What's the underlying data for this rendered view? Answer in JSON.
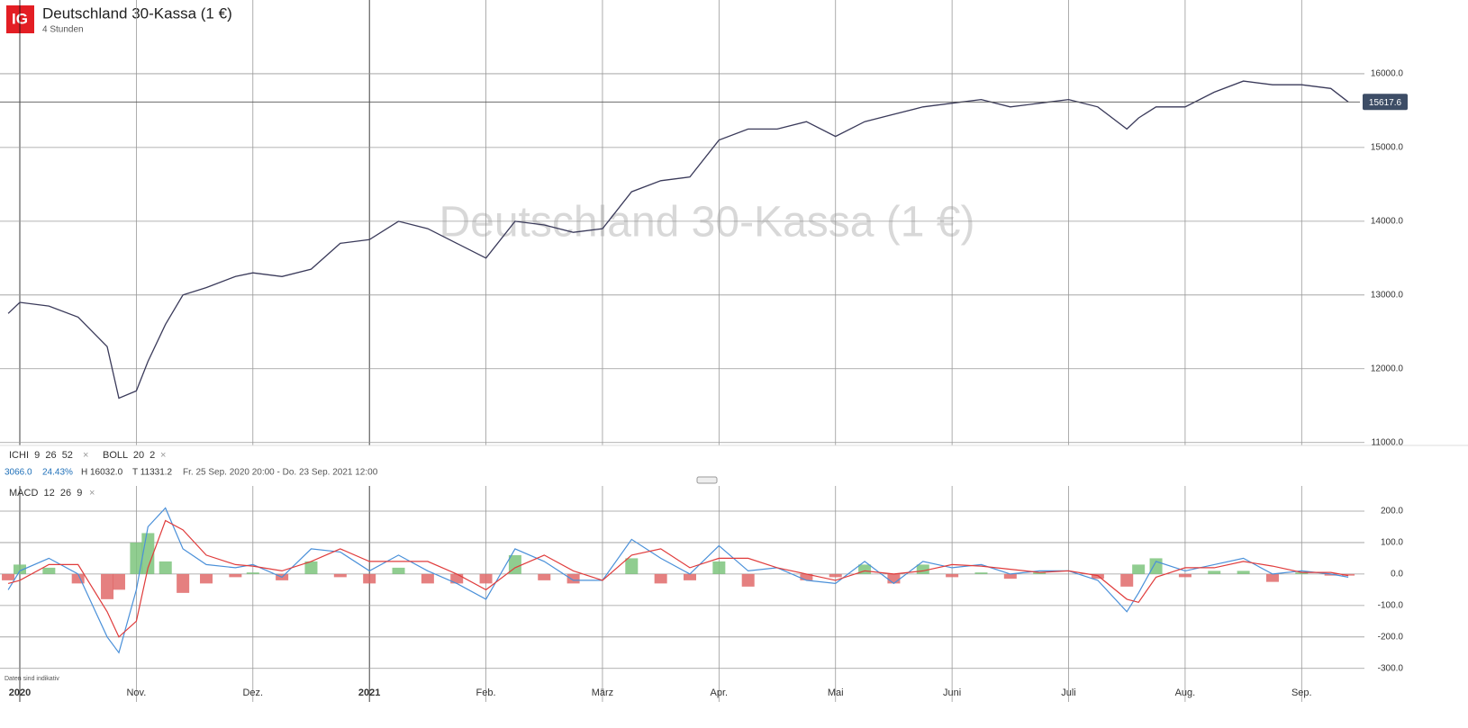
{
  "header": {
    "logo": "IG",
    "title": "Deutschland 30-Kassa (1 €)",
    "subtitle": "4 Stunden"
  },
  "indicators": {
    "ichi": "ICHI  9  26  52",
    "boll": "BOLL  20  2",
    "macd": "MACD  12  26  9"
  },
  "stats": {
    "change": "3066.0",
    "change_pct": "24.43%",
    "high": "H 16032.0",
    "low": "T 11331.2",
    "range": "Fr. 25 Sep. 2020 20:00 - Do. 23 Sep. 2021 12:00"
  },
  "footer": "Daten sind indikativ",
  "chart_data": [
    {
      "type": "line",
      "color": "#3a3a5a",
      "grid": true,
      "x": [
        -0.1,
        0,
        0.25,
        0.5,
        0.75,
        0.85,
        1,
        1.1,
        1.25,
        1.4,
        1.6,
        1.85,
        2,
        2.25,
        2.5,
        2.75,
        3,
        3.25,
        3.5,
        3.75,
        4,
        4.25,
        4.5,
        4.75,
        5,
        5.25,
        5.5,
        5.75,
        6,
        6.25,
        6.5,
        6.75,
        7,
        7.25,
        7.5,
        7.75,
        8,
        8.25,
        8.5,
        8.75,
        9,
        9.25,
        9.5,
        9.6,
        9.75,
        10,
        10.25,
        10.5,
        10.75,
        11,
        11.25,
        11.4
      ],
      "values": [
        12750,
        12900,
        12850,
        12700,
        12300,
        11600,
        11700,
        12100,
        12600,
        13000,
        13100,
        13250,
        13300,
        13250,
        13350,
        13700,
        13750,
        14000,
        13900,
        13700,
        13500,
        14000,
        13950,
        13850,
        13900,
        14400,
        14550,
        14600,
        15100,
        15250,
        15250,
        15350,
        15150,
        15350,
        15450,
        15550,
        15600,
        15650,
        15550,
        15600,
        15650,
        15550,
        15250,
        15400,
        15550,
        15550,
        15750,
        15900,
        15850,
        15850,
        15800,
        15617.6
      ],
      "last_value": 15617.6,
      "xlim": [
        -0.17,
        11.5
      ],
      "xticks": [
        {
          "value": 0,
          "label": "2020"
        },
        {
          "value": 1,
          "label": "Nov."
        },
        {
          "value": 2,
          "label": "Dez."
        },
        {
          "value": 3,
          "label": "2021"
        },
        {
          "value": 4,
          "label": "Feb."
        },
        {
          "value": 5,
          "label": "März"
        },
        {
          "value": 6,
          "label": "Apr."
        },
        {
          "value": 7,
          "label": "Mai"
        },
        {
          "value": 8,
          "label": "Juni"
        },
        {
          "value": 9,
          "label": "Juli"
        },
        {
          "value": 10,
          "label": "Aug."
        },
        {
          "value": 11,
          "label": "Sep."
        }
      ],
      "ylim": [
        10960,
        17000
      ],
      "yticks": [
        {
          "value": 11000,
          "label": "11000.0"
        },
        {
          "value": 12000,
          "label": "12000.0"
        },
        {
          "value": 13000,
          "label": "13000.0"
        },
        {
          "value": 14000,
          "label": "14000.0"
        },
        {
          "value": 15000,
          "label": "15000.0"
        },
        {
          "value": 16000,
          "label": "16000.0"
        }
      ]
    },
    {
      "type": "macd",
      "grid": true,
      "x": [
        -0.1,
        0,
        0.25,
        0.5,
        0.75,
        0.85,
        1,
        1.1,
        1.25,
        1.4,
        1.6,
        1.85,
        2,
        2.25,
        2.5,
        2.75,
        3,
        3.25,
        3.5,
        3.75,
        4,
        4.25,
        4.5,
        4.75,
        5,
        5.25,
        5.5,
        5.75,
        6,
        6.25,
        6.5,
        6.75,
        7,
        7.25,
        7.5,
        7.75,
        8,
        8.25,
        8.5,
        8.75,
        9,
        9.25,
        9.5,
        9.6,
        9.75,
        10,
        10.25,
        10.5,
        10.75,
        11,
        11.25,
        11.4
      ],
      "series": [
        {
          "color": "#4a90d9",
          "values": [
            -50,
            10,
            50,
            0,
            -200,
            -250,
            -50,
            150,
            210,
            80,
            30,
            20,
            30,
            -10,
            80,
            70,
            10,
            60,
            10,
            -30,
            -80,
            80,
            40,
            -20,
            -20,
            110,
            50,
            0,
            90,
            10,
            20,
            -20,
            -30,
            40,
            -30,
            40,
            20,
            30,
            0,
            10,
            10,
            -20,
            -120,
            -60,
            40,
            10,
            30,
            50,
            0,
            10,
            0,
            -10
          ]
        },
        {
          "color": "#e03c3c",
          "values": [
            -30,
            -20,
            30,
            30,
            -120,
            -200,
            -150,
            20,
            170,
            140,
            60,
            30,
            25,
            10,
            40,
            80,
            40,
            40,
            40,
            0,
            -50,
            20,
            60,
            10,
            -20,
            60,
            80,
            20,
            50,
            50,
            20,
            0,
            -20,
            10,
            0,
            10,
            30,
            25,
            15,
            5,
            10,
            -5,
            -80,
            -90,
            -10,
            20,
            20,
            40,
            25,
            5,
            5,
            -5
          ]
        }
      ],
      "histogram": {
        "up_color": "#7cc47c",
        "down_color": "#e06a6a",
        "values": [
          -20,
          30,
          20,
          -30,
          -80,
          -50,
          100,
          130,
          40,
          -60,
          -30,
          -10,
          5,
          -20,
          40,
          -10,
          -30,
          20,
          -30,
          -30,
          -30,
          60,
          -20,
          -30,
          0,
          50,
          -30,
          -20,
          40,
          -40,
          0,
          -20,
          -10,
          30,
          -30,
          30,
          -10,
          5,
          -15,
          5,
          0,
          -15,
          -40,
          30,
          50,
          -10,
          10,
          10,
          -25,
          5,
          -5,
          -5
        ]
      },
      "xlim": [
        -0.17,
        11.5
      ],
      "ylim": [
        -335,
        280
      ],
      "yticks": [
        {
          "value": -300,
          "label": "-300.0"
        },
        {
          "value": -200,
          "label": "-200.0"
        },
        {
          "value": -100,
          "label": "-100.0"
        },
        {
          "value": 0,
          "label": "0.0"
        },
        {
          "value": 100,
          "label": "100.0"
        },
        {
          "value": 200,
          "label": "200.0"
        }
      ]
    }
  ]
}
